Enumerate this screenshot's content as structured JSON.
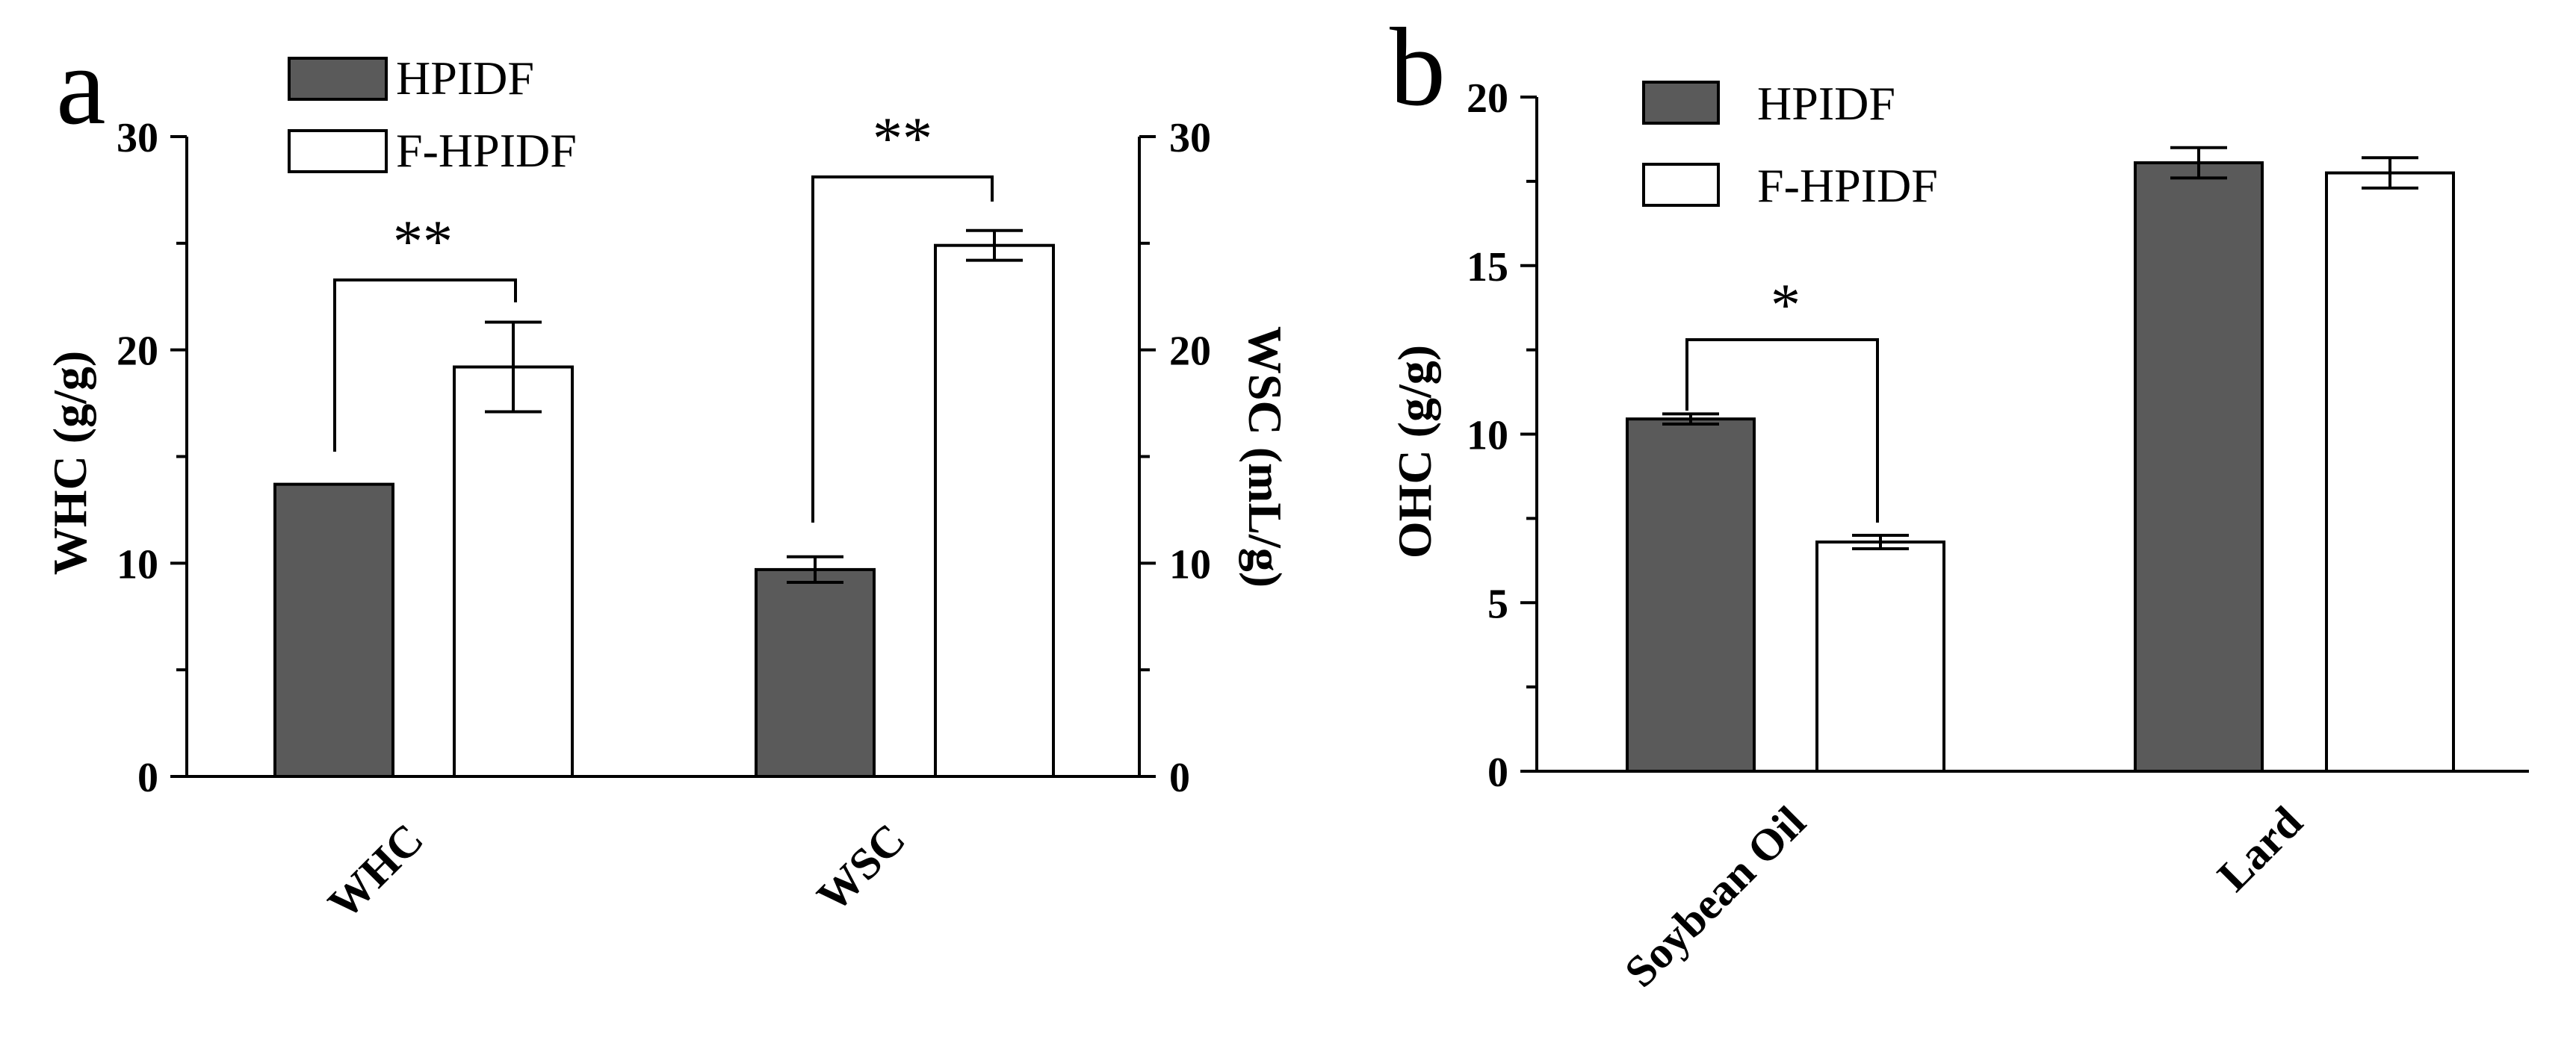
{
  "chart_data": [
    {
      "panel_label": "a",
      "type": "bar",
      "categories": [
        "WHC",
        "WSC"
      ],
      "series": [
        {
          "name": "HPIDF",
          "values": [
            13.7,
            9.7
          ],
          "errors": [
            0,
            0.6
          ],
          "color": "#5a5a5a"
        },
        {
          "name": "F-HPIDF",
          "values": [
            19.2,
            24.9
          ],
          "errors": [
            2.1,
            0.7
          ],
          "color": "#ffffff"
        }
      ],
      "ylabel": "WHC (g/g)",
      "ylabel_right": "WSC (mL/g)",
      "ylim": [
        0,
        30
      ],
      "yticks": [
        "0",
        "10",
        "20",
        "30"
      ],
      "significance": [
        {
          "category": "WHC",
          "label": "**"
        },
        {
          "category": "WSC",
          "label": "**"
        }
      ],
      "legend": "top-left",
      "grid": false
    },
    {
      "panel_label": "b",
      "type": "bar",
      "categories": [
        "Soybean Oil",
        "Lard"
      ],
      "series": [
        {
          "name": "HPIDF",
          "values": [
            10.45,
            18.05
          ],
          "errors": [
            0.15,
            0.45
          ],
          "color": "#5a5a5a"
        },
        {
          "name": "F-HPIDF",
          "values": [
            6.8,
            17.75
          ],
          "errors": [
            0.2,
            0.45
          ],
          "color": "#ffffff"
        }
      ],
      "ylabel": "OHC (g/g)",
      "ylim": [
        0,
        20
      ],
      "yticks": [
        "0",
        "5",
        "10",
        "15",
        "20"
      ],
      "significance": [
        {
          "category": "Soybean Oil",
          "label": "*"
        }
      ],
      "legend": "top-left",
      "grid": false
    }
  ]
}
